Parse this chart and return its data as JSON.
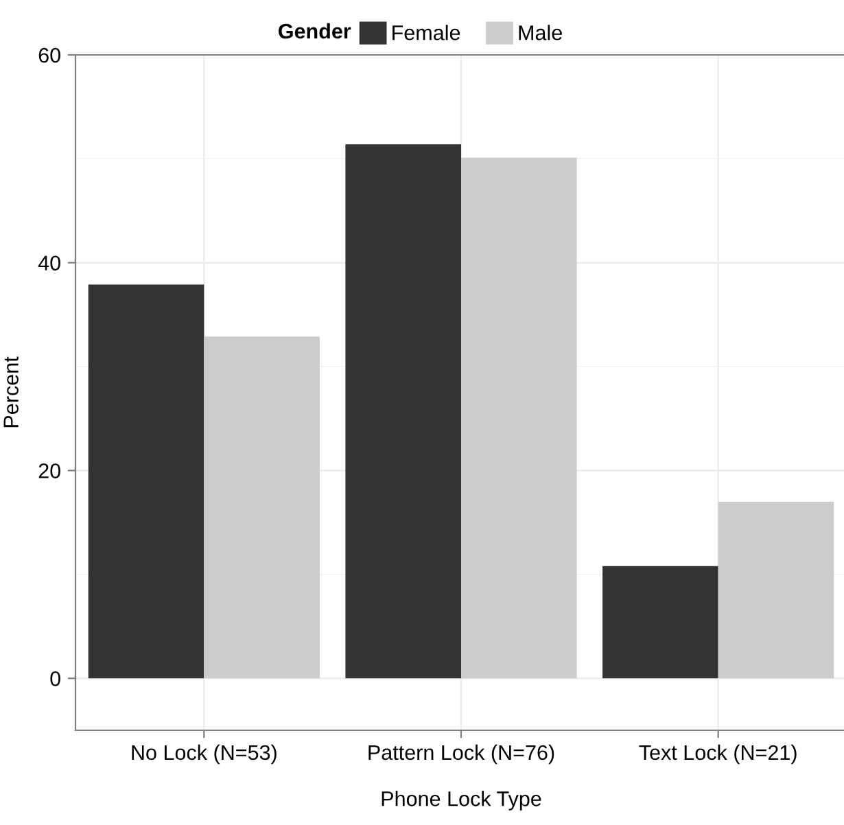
{
  "chart_data": {
    "type": "bar",
    "xlabel": "Phone Lock Type",
    "ylabel": "Percent",
    "legend_title": "Gender",
    "categories": [
      "No Lock (N=53)",
      "Pattern Lock (N=76)",
      "Text Lock (N=21)"
    ],
    "series": [
      {
        "name": "Female",
        "color": "#333333",
        "values": [
          37.9,
          51.4,
          10.8
        ]
      },
      {
        "name": "Male",
        "color": "#cccccc",
        "values": [
          32.9,
          50.1,
          17.0
        ]
      }
    ],
    "ylim": [
      -5,
      60
    ],
    "yticks": [
      0,
      20,
      40,
      60
    ],
    "grid": true,
    "legend": "top"
  }
}
